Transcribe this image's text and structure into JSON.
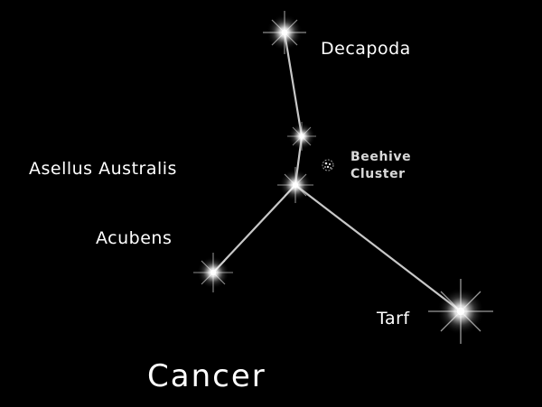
{
  "title": "Cancer",
  "stars": {
    "decapoda": "Decapoda",
    "asellus_borealis": "",
    "asellus_australis": "Asellus Australis",
    "acubens": "Acubens",
    "tarf": "Tarf"
  },
  "cluster": {
    "line1": "Beehive",
    "line2": "Cluster",
    "icon": "star-cluster-icon"
  },
  "colors": {
    "background": "#000000",
    "lines": "#c8c8c8",
    "labels": "#ffffff"
  }
}
